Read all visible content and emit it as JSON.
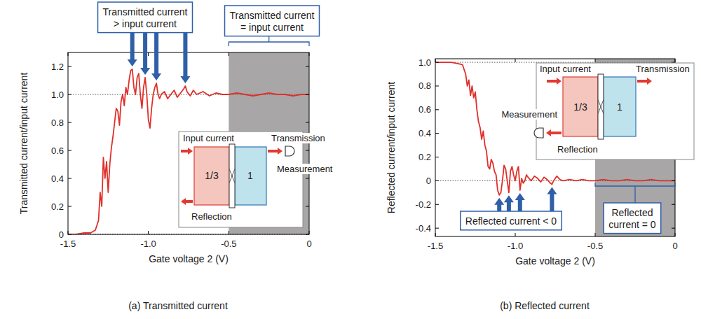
{
  "chart_data": [
    {
      "type": "line",
      "title": "(a) Transmitted current",
      "x_label": "Gate voltage 2 (V)",
      "y_label": "Transmitted current/input current",
      "xlim": [
        -1.5,
        0
      ],
      "xticks": [
        -1.5,
        {
          "value": -1,
          "label": "-1.0"
        },
        -0.5,
        0
      ],
      "ylim": [
        0,
        1.3
      ],
      "yticks": [
        0,
        0.2,
        0.4,
        0.6,
        0.8,
        {
          "value": 1,
          "label": "1.0"
        },
        1.2
      ],
      "reference_lines": [
        0,
        1
      ],
      "shaded_xrange": [
        -0.5,
        0
      ],
      "x": [
        -1.5,
        -1.45,
        -1.4,
        -1.36,
        -1.33,
        -1.31,
        -1.3,
        -1.29,
        -1.28,
        -1.27,
        -1.26,
        -1.25,
        -1.24,
        -1.23,
        -1.22,
        -1.21,
        -1.2,
        -1.19,
        -1.18,
        -1.17,
        -1.16,
        -1.15,
        -1.14,
        -1.13,
        -1.12,
        -1.11,
        -1.1,
        -1.09,
        -1.08,
        -1.07,
        -1.06,
        -1.05,
        -1.04,
        -1.03,
        -1.02,
        -1.01,
        -1.0,
        -0.99,
        -0.98,
        -0.97,
        -0.96,
        -0.95,
        -0.94,
        -0.93,
        -0.92,
        -0.9,
        -0.88,
        -0.86,
        -0.84,
        -0.82,
        -0.8,
        -0.78,
        -0.77,
        -0.76,
        -0.74,
        -0.72,
        -0.7,
        -0.66,
        -0.62,
        -0.58,
        -0.54,
        -0.5,
        -0.45,
        -0.4,
        -0.35,
        -0.3,
        -0.25,
        -0.2,
        -0.15,
        -0.1,
        -0.05,
        0
      ],
      "series": [
        {
          "color": "#e0302a",
          "values": [
            0,
            0,
            0.01,
            0.01,
            0.03,
            0.1,
            0.3,
            0.2,
            0.55,
            0.4,
            0.52,
            0.3,
            0.5,
            0.62,
            0.7,
            0.8,
            0.9,
            0.88,
            0.78,
            0.95,
            1.0,
            0.92,
            1.05,
            1.0,
            1.1,
            1.17,
            1.18,
            1.05,
            1.0,
            1.12,
            1.15,
            1.0,
            0.9,
            1.05,
            1.12,
            1.0,
            0.82,
            0.76,
            0.9,
            1.0,
            1.05,
            1.08,
            1.0,
            0.97,
            1.0,
            1.02,
            0.97,
            1.0,
            1.03,
            0.98,
            1.01,
            1.04,
            1.06,
            1.02,
            0.99,
            1.03,
            1.0,
            1.02,
            0.99,
            1.01,
            1.0,
            1.0,
            1.01,
            1.0,
            0.99,
            1.0,
            1.01,
            1.0,
            1.0,
            0.99,
            1.0,
            1.0
          ]
        }
      ],
      "annotations": [
        {
          "lines": [
            "Transmitted current",
            "> input current"
          ],
          "arrow_x": [
            -1.1,
            -1.02,
            -0.95,
            -0.77
          ]
        },
        {
          "lines": [
            "Transmitted current",
            "= input current"
          ],
          "span": [
            -0.5,
            0
          ]
        }
      ],
      "inset": {
        "input": "Input current",
        "transmission": "Transmission",
        "reflection": "Reflection",
        "measurement": "Measurement",
        "left_region": "1/3",
        "right_region": "1"
      }
    },
    {
      "type": "line",
      "title": "(b) Reflected current",
      "x_label": "Gate voltage 2 (V)",
      "y_label": "Reflected current/input current",
      "xlim": [
        -1.5,
        0
      ],
      "xticks": [
        -1.5,
        {
          "value": -1,
          "label": "-1.0"
        },
        -0.5,
        0
      ],
      "ylim": [
        -0.47,
        1.03
      ],
      "yticks": [
        -0.4,
        -0.2,
        0,
        0.2,
        0.4,
        0.6,
        0.8,
        {
          "value": 1,
          "label": "1.0"
        }
      ],
      "reference_lines": [
        0,
        1
      ],
      "shaded_xrange": [
        -0.5,
        0
      ],
      "x": [
        -1.5,
        -1.45,
        -1.4,
        -1.36,
        -1.33,
        -1.31,
        -1.3,
        -1.29,
        -1.28,
        -1.27,
        -1.26,
        -1.25,
        -1.24,
        -1.23,
        -1.22,
        -1.21,
        -1.2,
        -1.19,
        -1.18,
        -1.17,
        -1.16,
        -1.15,
        -1.14,
        -1.13,
        -1.12,
        -1.11,
        -1.1,
        -1.09,
        -1.08,
        -1.07,
        -1.06,
        -1.05,
        -1.04,
        -1.03,
        -1.02,
        -1.01,
        -1.0,
        -0.99,
        -0.98,
        -0.97,
        -0.96,
        -0.95,
        -0.94,
        -0.93,
        -0.92,
        -0.9,
        -0.88,
        -0.86,
        -0.84,
        -0.82,
        -0.8,
        -0.78,
        -0.77,
        -0.76,
        -0.74,
        -0.72,
        -0.7,
        -0.66,
        -0.62,
        -0.58,
        -0.54,
        -0.5,
        -0.45,
        -0.4,
        -0.35,
        -0.3,
        -0.25,
        -0.2,
        -0.15,
        -0.1,
        -0.05,
        0
      ],
      "series": [
        {
          "color": "#e0302a",
          "values": [
            1.0,
            1.0,
            1.0,
            0.99,
            0.98,
            0.9,
            0.8,
            0.85,
            0.72,
            0.8,
            0.7,
            0.75,
            0.6,
            0.5,
            0.45,
            0.35,
            0.42,
            0.3,
            0.25,
            0.12,
            0.1,
            0.18,
            0.15,
            0.08,
            0.05,
            -0.08,
            -0.12,
            -0.1,
            0.0,
            0.13,
            0.1,
            0.0,
            -0.1,
            0.08,
            0.12,
            0.05,
            0.0,
            0.08,
            0.12,
            -0.08,
            0.02,
            -0.02,
            0.0,
            0.05,
            0.03,
            0.0,
            0.04,
            0.02,
            -0.01,
            0.03,
            0.01,
            -0.02,
            -0.03,
            0.0,
            0.04,
            0.01,
            0.0,
            0.01,
            0.0,
            0.01,
            0.0,
            0.0,
            0.01,
            0.0,
            0.0,
            0.01,
            0.0,
            0.0,
            0.01,
            0.0,
            0.0,
            0.0
          ]
        }
      ],
      "annotations": [
        {
          "lines": [
            "Reflected current < 0"
          ],
          "arrow_x": [
            -1.1,
            -1.04,
            -0.97,
            -0.77
          ]
        },
        {
          "lines": [
            "Reflected",
            "current = 0"
          ],
          "span": [
            -0.5,
            0
          ]
        }
      ],
      "inset": {
        "input": "Input current",
        "transmission": "Transmission",
        "reflection": "Reflection",
        "measurement": "Measurement",
        "left_region": "1/3",
        "right_region": "1"
      }
    }
  ]
}
